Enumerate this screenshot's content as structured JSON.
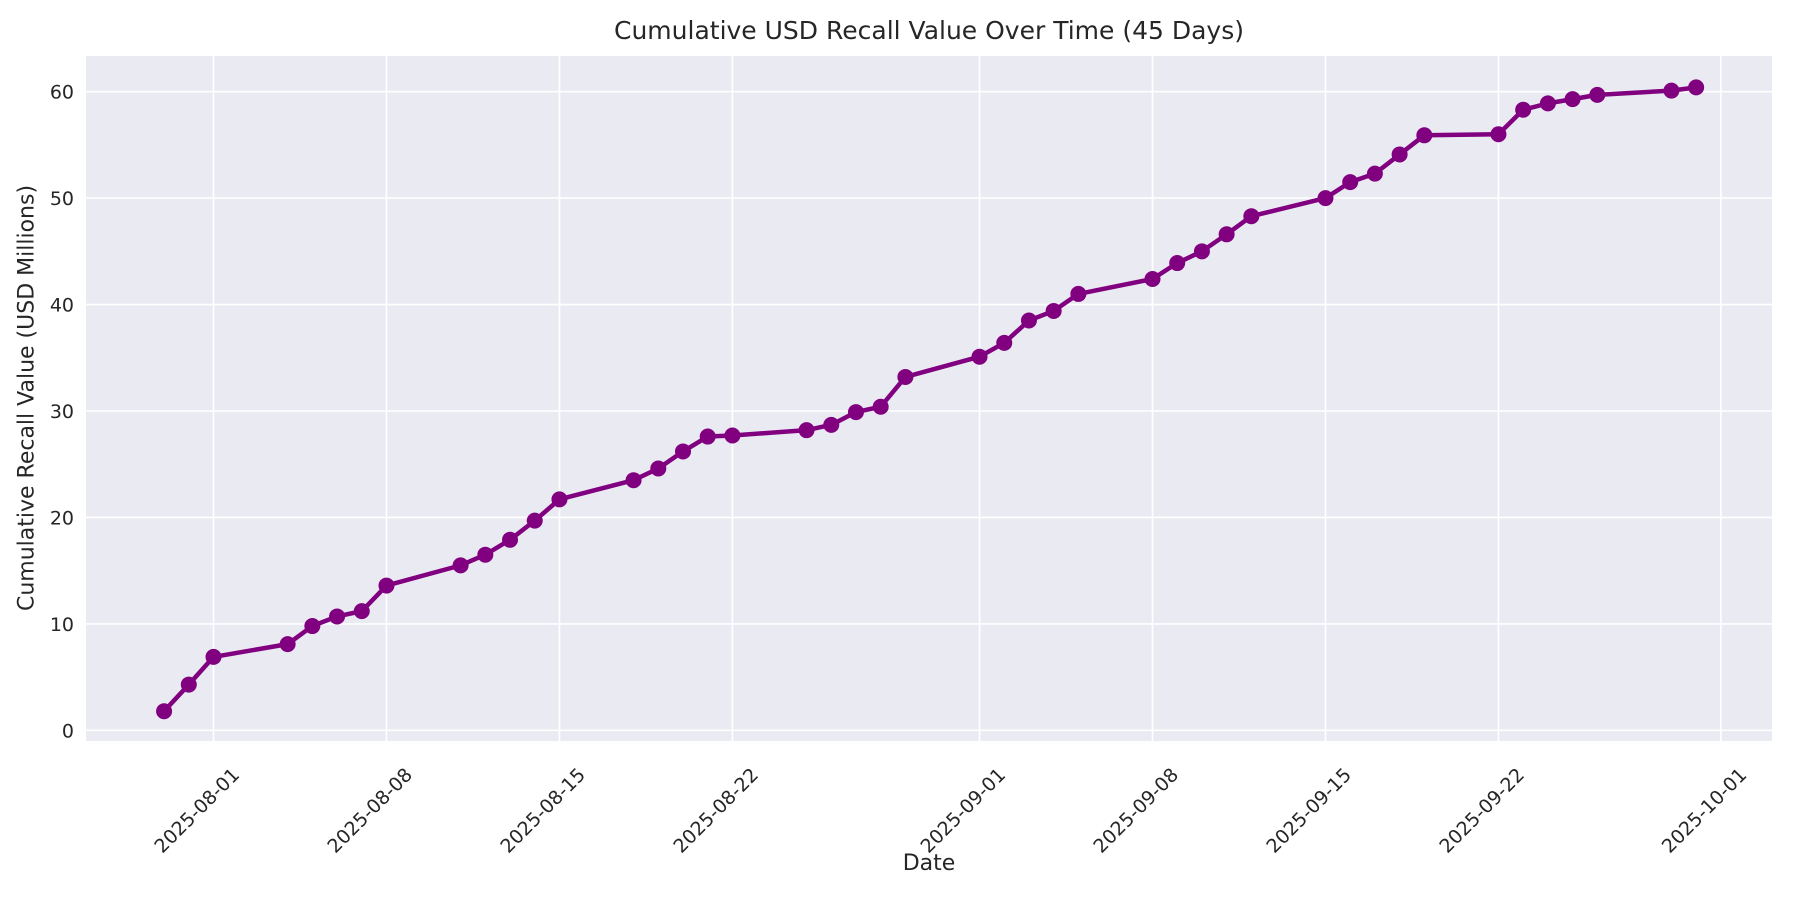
{
  "chart_data": {
    "type": "line",
    "title": "Cumulative USD Recall Value Over Time (45 Days)",
    "xlabel": "Date",
    "ylabel": "Cumulative Recall Value (USD Millions)",
    "x": [
      "2025-07-30",
      "2025-07-31",
      "2025-08-01",
      "2025-08-04",
      "2025-08-05",
      "2025-08-06",
      "2025-08-07",
      "2025-08-08",
      "2025-08-11",
      "2025-08-12",
      "2025-08-13",
      "2025-08-14",
      "2025-08-15",
      "2025-08-18",
      "2025-08-19",
      "2025-08-20",
      "2025-08-21",
      "2025-08-22",
      "2025-08-25",
      "2025-08-26",
      "2025-08-27",
      "2025-08-28",
      "2025-08-29",
      "2025-09-01",
      "2025-09-02",
      "2025-09-03",
      "2025-09-04",
      "2025-09-05",
      "2025-09-08",
      "2025-09-09",
      "2025-09-10",
      "2025-09-11",
      "2025-09-12",
      "2025-09-15",
      "2025-09-16",
      "2025-09-17",
      "2025-09-18",
      "2025-09-19",
      "2025-09-22",
      "2025-09-23",
      "2025-09-24",
      "2025-09-25",
      "2025-09-26",
      "2025-09-29",
      "2025-09-30"
    ],
    "values": [
      1.8,
      4.3,
      6.9,
      8.1,
      9.8,
      10.7,
      11.2,
      13.6,
      15.5,
      16.5,
      17.9,
      19.7,
      21.7,
      23.5,
      24.6,
      26.2,
      27.6,
      27.7,
      28.2,
      28.7,
      29.9,
      30.4,
      33.2,
      35.1,
      36.4,
      38.5,
      39.4,
      41.0,
      42.4,
      43.9,
      45.0,
      46.6,
      48.3,
      50.0,
      51.5,
      52.3,
      54.1,
      55.9,
      56.0,
      58.3,
      58.9,
      59.3,
      59.7,
      60.1,
      60.4
    ],
    "x_tick_labels": [
      "2025-08-01",
      "2025-08-08",
      "2025-08-15",
      "2025-08-22",
      "2025-09-01",
      "2025-09-08",
      "2025-09-15",
      "2025-09-22",
      "2025-10-01"
    ],
    "y_ticks": [
      0,
      10,
      20,
      30,
      40,
      50,
      60
    ],
    "ylim": [
      -1.0,
      63.35
    ],
    "xlim_days_from_first_tick": [
      -5.16,
      63.07
    ],
    "grid": true,
    "legend": "none",
    "line_color": "#800080",
    "marker": "circle",
    "plot_background_color": "#EAEAF2",
    "grid_color": "#FFFFFF",
    "text_color": "#262626"
  }
}
